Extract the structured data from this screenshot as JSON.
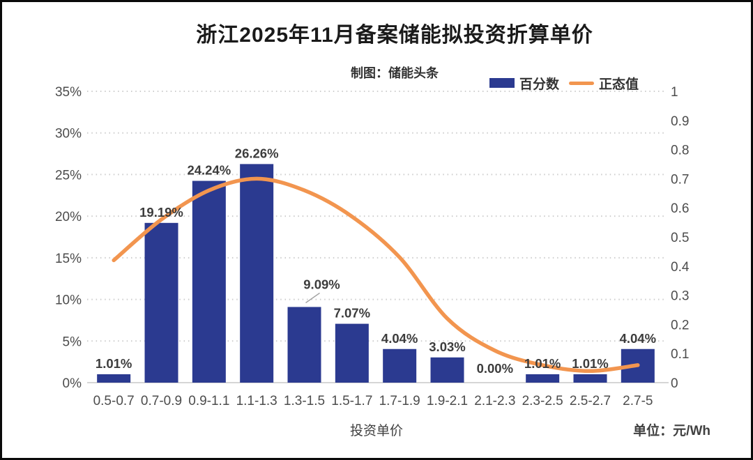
{
  "header": {
    "title": "浙江2025年11月备案储能拟投资折算单价",
    "subtitle": "制图：储能头条"
  },
  "legend": {
    "items": [
      {
        "label": "百分数",
        "marker": "bar-swatch",
        "color": "#2B3A90"
      },
      {
        "label": "正态值",
        "marker": "line-dash",
        "color": "#F2954F"
      }
    ]
  },
  "axes": {
    "x_title": "投资单价",
    "unit_note": "单位：元/Wh"
  },
  "chart_data": {
    "type": "bar",
    "subtype": "combo-bar-line",
    "title": "浙江2025年11月备案储能拟投资折算单价",
    "subtitle": "制图：储能头条",
    "xlabel": "投资单价",
    "unit": "元/Wh",
    "grid": "dotted-horizontal",
    "legend_position": "top-right",
    "categories": [
      "0.5-0.7",
      "0.7-0.9",
      "0.9-1.1",
      "1.1-1.3",
      "1.3-1.5",
      "1.5-1.7",
      "1.7-1.9",
      "1.9-2.1",
      "2.1-2.3",
      "2.3-2.5",
      "2.5-2.7",
      "2.7-5"
    ],
    "left_axis": {
      "min": 0,
      "max": 35,
      "step": 5,
      "ticks": [
        "35%",
        "30%",
        "25%",
        "20%",
        "15%",
        "10%",
        "5%",
        "0%"
      ]
    },
    "right_axis": {
      "min": 0,
      "max": 1,
      "step": 0.1,
      "ticks": [
        "1",
        "0.9",
        "0.8",
        "0.7",
        "0.6",
        "0.5",
        "0.4",
        "0.3",
        "0.2",
        "0.1",
        "0"
      ]
    },
    "series": [
      {
        "name": "百分数",
        "type": "bar",
        "yaxis": "left",
        "color": "#2B3A90",
        "values": [
          1.01,
          19.19,
          24.24,
          26.26,
          9.09,
          7.07,
          4.04,
          3.03,
          0.0,
          1.01,
          1.01,
          4.04
        ],
        "labels": [
          "1.01%",
          "19.19%",
          "24.24%",
          "26.26%",
          "9.09%",
          "7.07%",
          "4.04%",
          "3.03%",
          "0.00%",
          "1.01%",
          "1.01%",
          "4.04%"
        ]
      },
      {
        "name": "正态值",
        "type": "line",
        "yaxis": "right",
        "color": "#F2954F",
        "values": [
          0.42,
          0.56,
          0.66,
          0.7,
          0.66,
          0.57,
          0.43,
          0.22,
          0.11,
          0.06,
          0.04,
          0.06
        ]
      }
    ]
  },
  "style": {
    "bar_color": "#2B3A90",
    "line_color": "#F2954F",
    "grid_color": "#cccccc",
    "axis_line_color": "#d6d6d6",
    "tick_label_color": "#4c4c4c",
    "value_label_color": "#3c3c3c",
    "leader_line_color": "#a0a0a0"
  }
}
